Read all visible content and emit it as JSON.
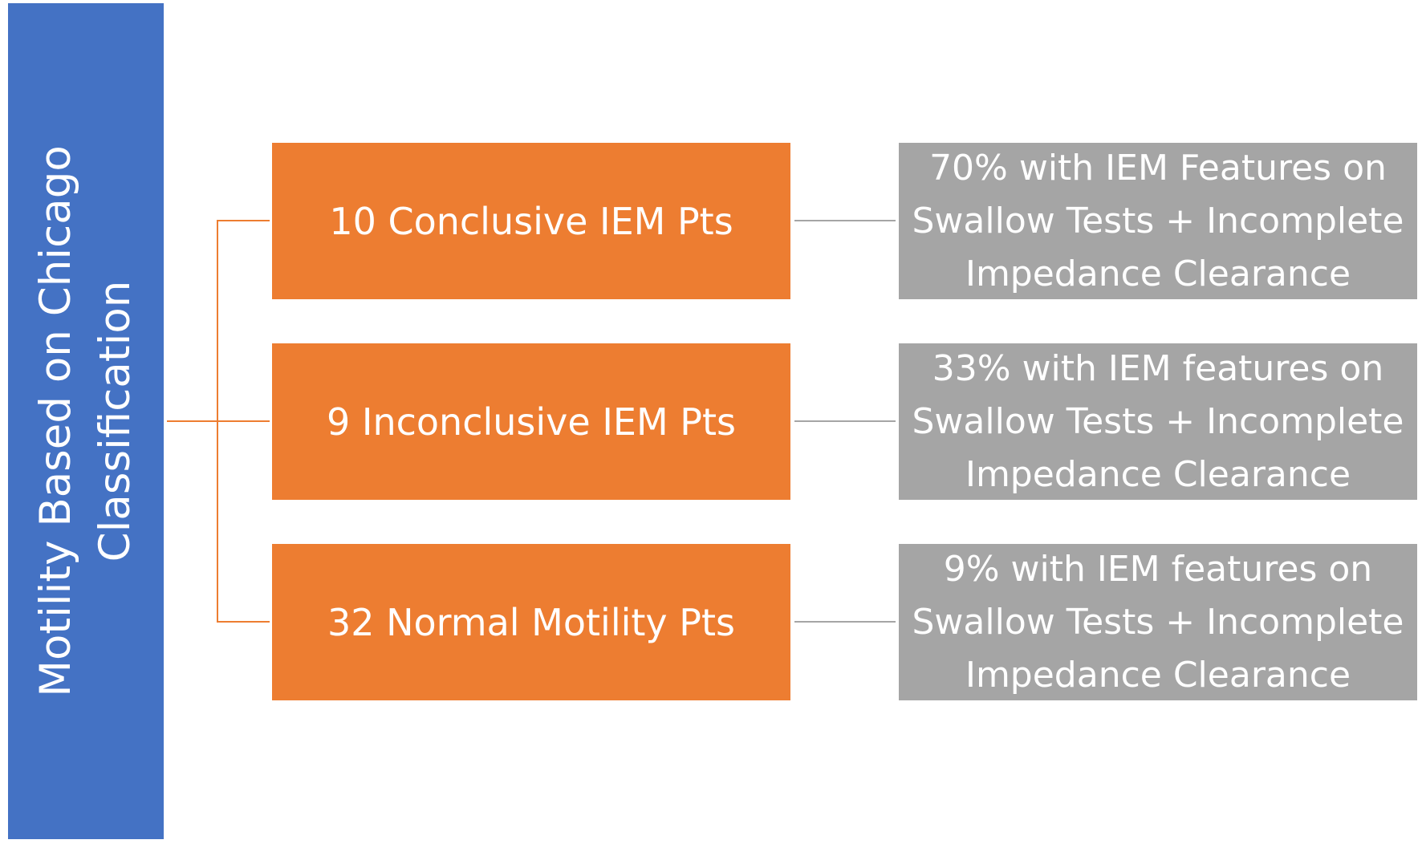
{
  "diagram": {
    "root": {
      "label": "Motility Based on Chicago\nClassification",
      "color": "#4472c4"
    },
    "branch_color": "#ed7d31",
    "outcome_color": "#a5a5a5",
    "branches": [
      {
        "label": "10 Conclusive IEM Pts",
        "outcome": "70% with IEM Features on\nSwallow Tests + Incomplete\nImpedance Clearance"
      },
      {
        "label": "9 Inconclusive IEM Pts",
        "outcome": "33% with IEM features on\nSwallow Tests + Incomplete\nImpedance Clearance"
      },
      {
        "label": "32 Normal Motility Pts",
        "outcome": "9% with IEM features on\nSwallow Tests + Incomplete\nImpedance Clearance"
      }
    ]
  }
}
